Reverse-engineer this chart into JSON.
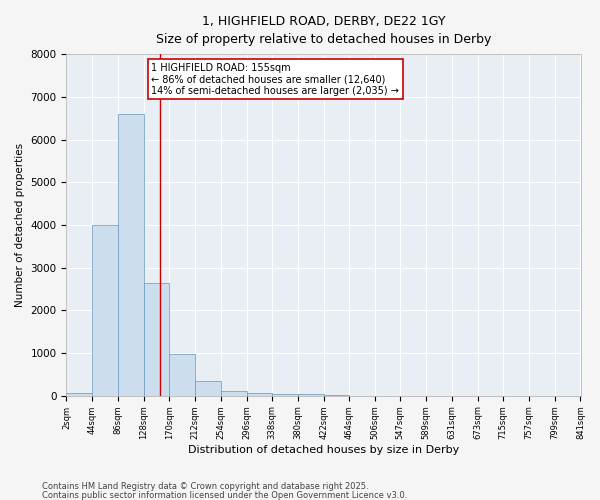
{
  "title1": "1, HIGHFIELD ROAD, DERBY, DE22 1GY",
  "title2": "Size of property relative to detached houses in Derby",
  "xlabel": "Distribution of detached houses by size in Derby",
  "ylabel": "Number of detached properties",
  "bar_color": "#ccdded",
  "bar_edge_color": "#6699bb",
  "background_color": "#e8eef4",
  "grid_color": "#ffffff",
  "fig_background": "#f5f5f5",
  "bin_edges": [
    2,
    44,
    86,
    128,
    170,
    212,
    254,
    296,
    338,
    380,
    422,
    464,
    506,
    547,
    589,
    631,
    673,
    715,
    757,
    799,
    841
  ],
  "bin_labels": [
    "2sqm",
    "44sqm",
    "86sqm",
    "128sqm",
    "170sqm",
    "212sqm",
    "254sqm",
    "296sqm",
    "338sqm",
    "380sqm",
    "422sqm",
    "464sqm",
    "506sqm",
    "547sqm",
    "589sqm",
    "631sqm",
    "673sqm",
    "715sqm",
    "757sqm",
    "799sqm",
    "841sqm"
  ],
  "counts": [
    70,
    4000,
    6600,
    2650,
    980,
    340,
    120,
    60,
    40,
    50,
    10,
    0,
    0,
    0,
    0,
    0,
    0,
    0,
    0,
    0
  ],
  "property_size": 155,
  "vline_color": "#cc0000",
  "annotation_text": "1 HIGHFIELD ROAD: 155sqm\n← 86% of detached houses are smaller (12,640)\n14% of semi-detached houses are larger (2,035) →",
  "annotation_box_color": "#ffffff",
  "annotation_box_edge_color": "#cc0000",
  "ylim": [
    0,
    8000
  ],
  "footnote1": "Contains HM Land Registry data © Crown copyright and database right 2025.",
  "footnote2": "Contains public sector information licensed under the Open Government Licence v3.0."
}
